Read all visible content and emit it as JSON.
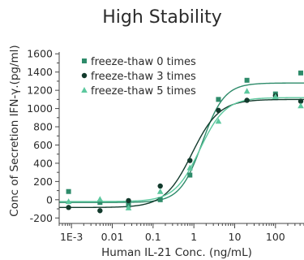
{
  "chart_data": {
    "type": "scatter",
    "title": "High Stability",
    "xlabel": "Human IL-21 Conc. (ng/mL)",
    "ylabel": "Conc of Secretion IFN-γ.(pg/ml)",
    "xscale": "log",
    "xlim": [
      0.0005,
      500
    ],
    "ylim": [
      -260,
      1620
    ],
    "xticks": [
      0.001,
      0.01,
      0.1,
      1,
      10,
      100
    ],
    "xtick_labels": [
      "1E-3",
      "0.01",
      "0.1",
      "1",
      "10",
      "100"
    ],
    "yticks": [
      -200,
      0,
      200,
      400,
      600,
      800,
      1000,
      1200,
      1400,
      1600
    ],
    "ytick_labels": [
      "-200",
      "0",
      "200",
      "400",
      "600",
      "800",
      "1000",
      "1200",
      "1400",
      "1600"
    ],
    "legend_position": "top-left",
    "grid": false,
    "series": [
      {
        "name": "freeze-thaw 0 times",
        "marker": "square",
        "color": "#2e8b6a",
        "x": [
          0.00085,
          0.005,
          0.025,
          0.15,
          0.8,
          4,
          20,
          100,
          500
        ],
        "y": [
          90,
          -30,
          -60,
          0,
          270,
          1100,
          1310,
          1160,
          1390
        ]
      },
      {
        "name": "freeze-thaw 3 times",
        "marker": "circle",
        "color": "#123a2c",
        "x": [
          0.00085,
          0.005,
          0.025,
          0.15,
          0.8,
          4,
          20,
          100,
          500
        ],
        "y": [
          -85,
          -120,
          -10,
          150,
          430,
          980,
          1090,
          1140,
          1080
        ]
      },
      {
        "name": "freeze-thaw 5 times",
        "marker": "triangle",
        "color": "#5cc89e",
        "x": [
          0.00085,
          0.005,
          0.025,
          0.15,
          0.8,
          4,
          20,
          100,
          500
        ],
        "y": [
          -20,
          5,
          -90,
          90,
          350,
          860,
          1190,
          1130,
          1030
        ]
      }
    ],
    "fits": [
      {
        "series": "freeze-thaw 0 times",
        "bottom": -30,
        "top": 1280,
        "ec50": 1.6,
        "hill": 1.6
      },
      {
        "series": "freeze-thaw 3 times",
        "bottom": -85,
        "top": 1100,
        "ec50": 0.9,
        "hill": 1.3
      },
      {
        "series": "freeze-thaw 5 times",
        "bottom": -20,
        "top": 1120,
        "ec50": 1.4,
        "hill": 1.4
      }
    ]
  }
}
